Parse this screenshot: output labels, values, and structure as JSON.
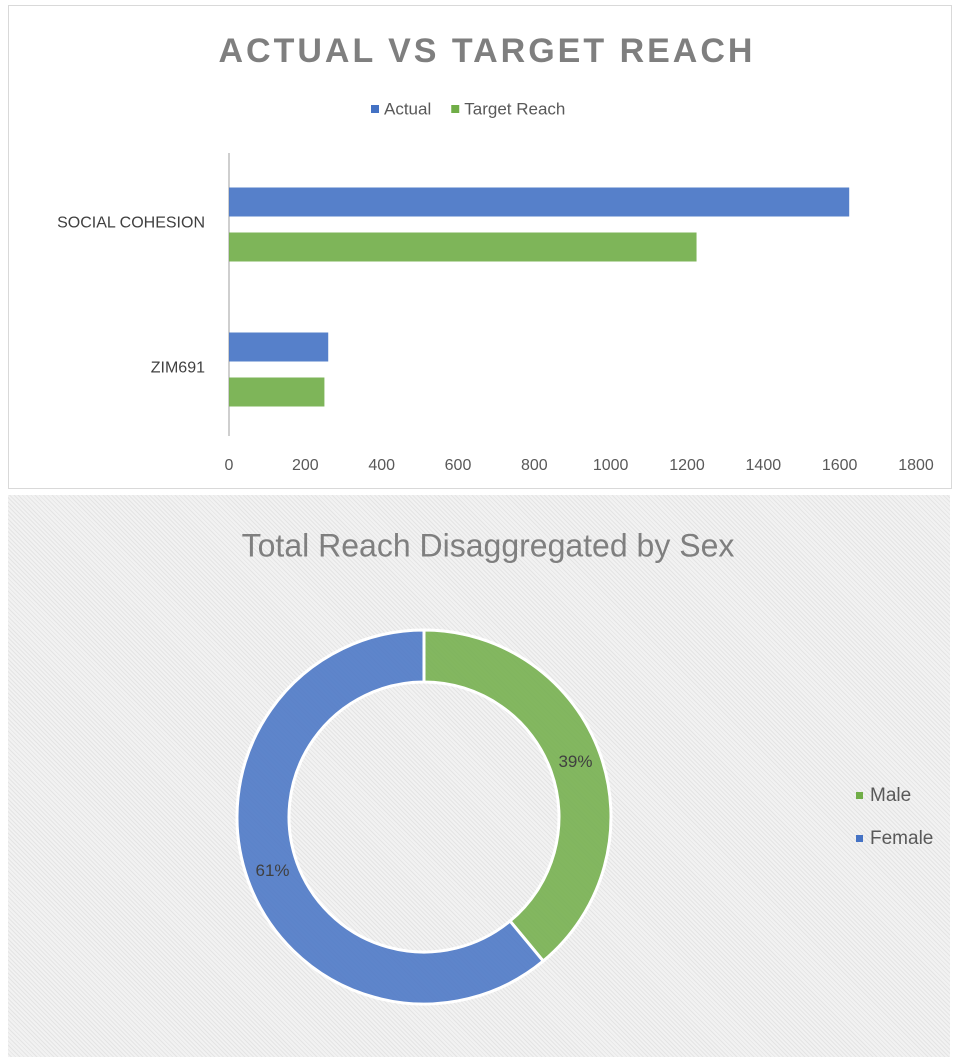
{
  "chart_data": [
    {
      "type": "bar",
      "orientation": "horizontal",
      "title": "ACTUAL VS TARGET REACH",
      "categories": [
        "SOCIAL COHESION",
        "ZIM691"
      ],
      "series": [
        {
          "name": "Actual",
          "color": "#4472c4",
          "values": [
            1625,
            260
          ]
        },
        {
          "name": "Target Reach",
          "color": "#70ad47",
          "values": [
            1225,
            250
          ]
        }
      ],
      "xlim": [
        0,
        1800
      ],
      "xticks": [
        0,
        200,
        400,
        600,
        800,
        1000,
        1200,
        1400,
        1600,
        1800
      ],
      "legend": "top"
    },
    {
      "type": "pie",
      "donut": true,
      "title": "Total Reach Disaggregated by Sex",
      "categories": [
        "Male",
        "Female"
      ],
      "values": [
        39,
        61
      ],
      "value_labels": [
        "39%",
        "61%"
      ],
      "colors": [
        "#70ad47",
        "#4472c4"
      ],
      "legend": "right"
    }
  ]
}
